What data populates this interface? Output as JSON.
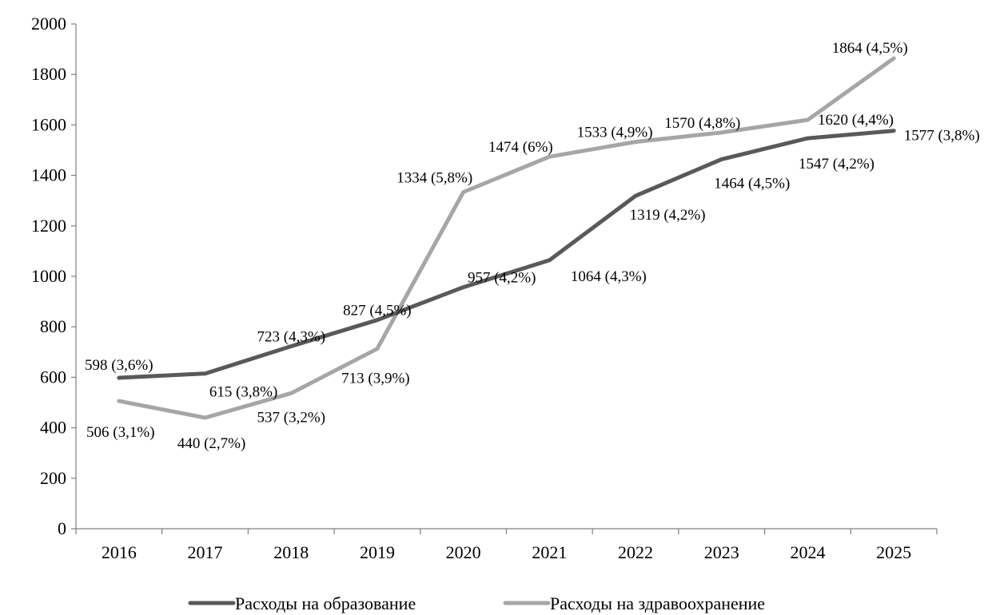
{
  "chart_data": {
    "type": "line",
    "title": "",
    "xlabel": "",
    "ylabel": "",
    "ylim": [
      0,
      2000
    ],
    "yticks": [
      0,
      200,
      400,
      600,
      800,
      1000,
      1200,
      1400,
      1600,
      1800,
      2000
    ],
    "categories": [
      "2016",
      "2017",
      "2018",
      "2019",
      "2020",
      "2021",
      "2022",
      "2023",
      "2024",
      "2025"
    ],
    "grid": false,
    "legend_position": "bottom",
    "series": [
      {
        "name": "Расходы на образование",
        "color": "#595959",
        "values": [
          598,
          615,
          723,
          827,
          957,
          1064,
          1319,
          1464,
          1547,
          1577
        ],
        "labels": [
          "598 (3,6%)",
          "615 (3,8%)",
          "723 (4,3%)",
          "827 (4,5%)",
          "957 (4,2%)",
          "1064 (4,3%)",
          "1319 (4,2%)",
          "1464 (4,5%)",
          "1547 (4,2%)",
          "1577 (3,8%)"
        ]
      },
      {
        "name": "Расходы на здравоохранение",
        "color": "#a6a6a6",
        "values": [
          506,
          440,
          537,
          713,
          1334,
          1474,
          1533,
          1570,
          1620,
          1864
        ],
        "labels": [
          "506 (3,1%)",
          "440 (2,7%)",
          "537 (3,2%)",
          "713 (3,9%)",
          "1334 (5,8%)",
          "1474 (6%)",
          "1533 (4,9%)",
          "1570 (4,8%)",
          "1620 (4,4%)",
          "1864 (4,5%)"
        ]
      }
    ]
  }
}
